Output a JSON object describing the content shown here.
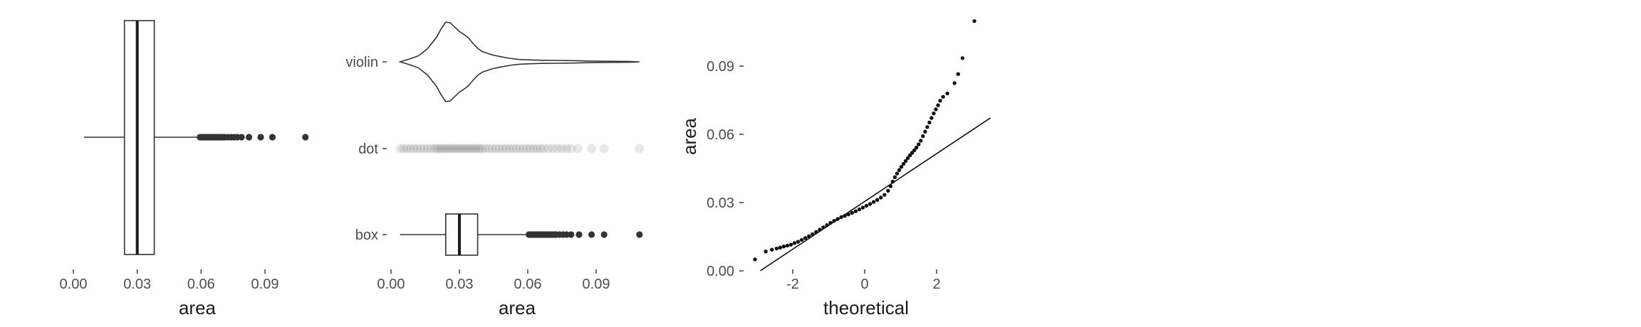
{
  "chart_data": [
    {
      "id": "panel1",
      "type": "box",
      "orientation": "horizontal",
      "xlabel": "area",
      "x_ticks": [
        0.0,
        0.03,
        0.06,
        0.09
      ],
      "x_tick_labels": [
        "0.00",
        "0.03",
        "0.06",
        "0.09"
      ],
      "xlim": [
        -0.0055,
        0.1134
      ],
      "box": {
        "min": 0.005,
        "q1": 0.024,
        "median": 0.03,
        "q3": 0.038,
        "whisker_high": 0.059
      },
      "outliers": [
        0.0595,
        0.0603,
        0.061,
        0.0617,
        0.0625,
        0.0633,
        0.064,
        0.0647,
        0.0655,
        0.066,
        0.0667,
        0.0675,
        0.068,
        0.0688,
        0.0695,
        0.0703,
        0.071,
        0.0725,
        0.074,
        0.0755,
        0.077,
        0.079,
        0.0825,
        0.088,
        0.0935,
        0.109
      ]
    },
    {
      "id": "panel2",
      "type": "distribution-comparison",
      "xlabel": "area",
      "categories": [
        "violin",
        "dot",
        "box"
      ],
      "x_ticks": [
        0.0,
        0.03,
        0.06,
        0.09
      ],
      "x_tick_labels": [
        "0.00",
        "0.03",
        "0.06",
        "0.09"
      ],
      "xlim": [
        -0.0055,
        0.1134
      ],
      "violin": {
        "x": [
          0.004,
          0.008,
          0.012,
          0.016,
          0.02,
          0.022,
          0.024,
          0.026,
          0.028,
          0.03,
          0.032,
          0.034,
          0.036,
          0.038,
          0.04,
          0.044,
          0.048,
          0.052,
          0.056,
          0.06,
          0.066,
          0.072,
          0.08,
          0.088,
          0.096,
          0.104,
          0.109
        ],
        "density": [
          0.0,
          0.07,
          0.15,
          0.33,
          0.62,
          0.83,
          1.0,
          0.98,
          0.87,
          0.76,
          0.69,
          0.6,
          0.46,
          0.34,
          0.26,
          0.18,
          0.13,
          0.09,
          0.06,
          0.05,
          0.04,
          0.035,
          0.03,
          0.02,
          0.015,
          0.01,
          0.0
        ]
      },
      "dots": [
        0.004,
        0.0055,
        0.007,
        0.0085,
        0.01,
        0.0115,
        0.013,
        0.0145,
        0.016,
        0.0175,
        0.019,
        0.02,
        0.021,
        0.022,
        0.023,
        0.024,
        0.025,
        0.026,
        0.027,
        0.028,
        0.029,
        0.03,
        0.031,
        0.032,
        0.033,
        0.034,
        0.035,
        0.036,
        0.037,
        0.038,
        0.039,
        0.04,
        0.0415,
        0.043,
        0.0445,
        0.046,
        0.0475,
        0.049,
        0.0505,
        0.052,
        0.0535,
        0.055,
        0.0565,
        0.058,
        0.0595,
        0.061,
        0.0625,
        0.064,
        0.0655,
        0.067,
        0.069,
        0.071,
        0.073,
        0.075,
        0.077,
        0.079,
        0.082,
        0.088,
        0.0935,
        0.109
      ],
      "box": {
        "min": 0.004,
        "q1": 0.024,
        "median": 0.03,
        "q3": 0.038,
        "whisker_high": 0.06
      },
      "outliers": [
        0.0605,
        0.0612,
        0.062,
        0.0628,
        0.0635,
        0.0642,
        0.065,
        0.0658,
        0.0665,
        0.0672,
        0.068,
        0.0688,
        0.0695,
        0.0705,
        0.0715,
        0.0725,
        0.074,
        0.0755,
        0.077,
        0.079,
        0.0825,
        0.088,
        0.0935,
        0.109
      ]
    },
    {
      "id": "panel3",
      "type": "qq",
      "xlabel": "theoretical",
      "ylabel": "area",
      "x_ticks": [
        -2,
        0,
        2
      ],
      "x_tick_labels": [
        "-2",
        "0",
        "2"
      ],
      "y_ticks": [
        0.0,
        0.03,
        0.06,
        0.09
      ],
      "y_tick_labels": [
        "0.00",
        "0.03",
        "0.06",
        "0.09"
      ],
      "xlim": [
        -3.2,
        3.5
      ],
      "ylim": [
        -0.002,
        0.112
      ],
      "reference_line": {
        "intercept": 0.0305,
        "slope": 0.0105,
        "x_from": -2.9,
        "x_to": 3.5
      },
      "points": [
        [
          -3.05,
          0.005
        ],
        [
          -2.75,
          0.0085
        ],
        [
          -2.58,
          0.0093
        ],
        [
          -2.45,
          0.0098
        ],
        [
          -2.35,
          0.0102
        ],
        [
          -2.25,
          0.0107
        ],
        [
          -2.15,
          0.0111
        ],
        [
          -2.05,
          0.0115
        ],
        [
          -1.95,
          0.0122
        ],
        [
          -1.85,
          0.0128
        ],
        [
          -1.75,
          0.0136
        ],
        [
          -1.65,
          0.0144
        ],
        [
          -1.55,
          0.0152
        ],
        [
          -1.45,
          0.0161
        ],
        [
          -1.35,
          0.0171
        ],
        [
          -1.25,
          0.0181
        ],
        [
          -1.15,
          0.0191
        ],
        [
          -1.05,
          0.0201
        ],
        [
          -0.95,
          0.0211
        ],
        [
          -0.85,
          0.022
        ],
        [
          -0.75,
          0.0228
        ],
        [
          -0.65,
          0.0236
        ],
        [
          -0.55,
          0.0242
        ],
        [
          -0.45,
          0.0248
        ],
        [
          -0.35,
          0.0255
        ],
        [
          -0.25,
          0.0262
        ],
        [
          -0.15,
          0.027
        ],
        [
          -0.05,
          0.0278
        ],
        [
          0.05,
          0.0286
        ],
        [
          0.15,
          0.0294
        ],
        [
          0.25,
          0.0303
        ],
        [
          0.35,
          0.0312
        ],
        [
          0.45,
          0.0322
        ],
        [
          0.55,
          0.0334
        ],
        [
          0.65,
          0.0352
        ],
        [
          0.72,
          0.0372
        ],
        [
          0.78,
          0.0392
        ],
        [
          0.84,
          0.0412
        ],
        [
          0.9,
          0.0428
        ],
        [
          0.96,
          0.0443
        ],
        [
          1.02,
          0.0457
        ],
        [
          1.08,
          0.047
        ],
        [
          1.14,
          0.0483
        ],
        [
          1.2,
          0.0496
        ],
        [
          1.26,
          0.0508
        ],
        [
          1.32,
          0.0519
        ],
        [
          1.38,
          0.053
        ],
        [
          1.44,
          0.0542
        ],
        [
          1.5,
          0.0556
        ],
        [
          1.56,
          0.0572
        ],
        [
          1.62,
          0.0592
        ],
        [
          1.68,
          0.0612
        ],
        [
          1.74,
          0.0632
        ],
        [
          1.8,
          0.0652
        ],
        [
          1.86,
          0.0672
        ],
        [
          1.92,
          0.0692
        ],
        [
          1.98,
          0.071
        ],
        [
          2.04,
          0.0728
        ],
        [
          2.1,
          0.0748
        ],
        [
          2.18,
          0.0765
        ],
        [
          2.3,
          0.078
        ],
        [
          2.5,
          0.0825
        ],
        [
          2.6,
          0.0865
        ],
        [
          2.72,
          0.0935
        ],
        [
          3.05,
          0.1098
        ]
      ]
    }
  ]
}
